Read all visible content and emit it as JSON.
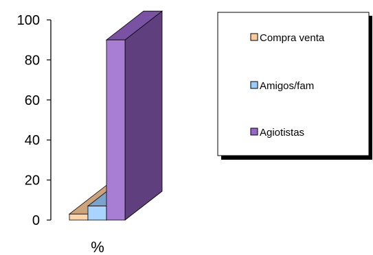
{
  "chart_data": {
    "type": "bar",
    "style": "3d-column",
    "categories": [
      "%"
    ],
    "series": [
      {
        "name": "Compra venta",
        "values": [
          3
        ],
        "color": "#FFCC99"
      },
      {
        "name": "Amigos/fam",
        "values": [
          7
        ],
        "color": "#99CCFF"
      },
      {
        "name": "Agiotistas",
        "values": [
          90
        ],
        "color": "#9966CC"
      }
    ],
    "ylim": [
      0,
      100
    ],
    "yticks": [
      0,
      20,
      40,
      60,
      80,
      100
    ],
    "grid": false,
    "legend_position": "right"
  }
}
